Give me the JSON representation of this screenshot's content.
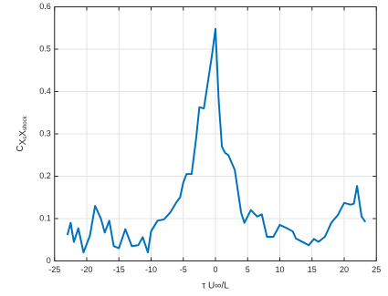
{
  "chart_data": {
    "type": "line",
    "xlabel": "τ U∞/L",
    "ylabel_parts": [
      "C",
      "X",
      "s",
      "X",
      "shock"
    ],
    "x": [
      -23,
      -22.5,
      -22,
      -21.3,
      -20.5,
      -19.5,
      -18.7,
      -17.8,
      -17.2,
      -16.5,
      -15.8,
      -15,
      -14,
      -13,
      -12,
      -11.3,
      -10.5,
      -10,
      -9,
      -8,
      -7,
      -6,
      -5.5,
      -5,
      -4.5,
      -3.7,
      -3,
      -2.5,
      -1.8,
      -1,
      -0.5,
      0,
      0.5,
      1,
      1.5,
      2,
      3,
      4,
      4.5,
      5.5,
      6.5,
      7.2,
      8,
      9,
      10,
      11,
      12,
      12.5,
      13.5,
      14.5,
      15.3,
      16,
      17,
      18,
      19,
      20,
      21,
      21.5,
      22,
      22.7,
      23.3
    ],
    "values": [
      0.061,
      0.09,
      0.045,
      0.077,
      0.02,
      0.06,
      0.13,
      0.1,
      0.067,
      0.095,
      0.035,
      0.03,
      0.075,
      0.035,
      0.037,
      0.056,
      0.02,
      0.07,
      0.095,
      0.098,
      0.115,
      0.14,
      0.15,
      0.185,
      0.205,
      0.205,
      0.29,
      0.363,
      0.36,
      0.44,
      0.49,
      0.548,
      0.38,
      0.27,
      0.255,
      0.25,
      0.215,
      0.113,
      0.09,
      0.12,
      0.105,
      0.11,
      0.057,
      0.057,
      0.085,
      0.078,
      0.07,
      0.053,
      0.045,
      0.037,
      0.052,
      0.045,
      0.057,
      0.09,
      0.108,
      0.137,
      0.133,
      0.135,
      0.177,
      0.105,
      0.092
    ],
    "color": "#0072bd",
    "xlim": [
      -25,
      25
    ],
    "xticks": [
      -25,
      -20,
      -15,
      -10,
      -5,
      0,
      5,
      10,
      15,
      20,
      25
    ],
    "ylim": [
      0,
      0.6
    ],
    "yticks": [
      0,
      0.1,
      0.2,
      0.3,
      0.4,
      0.5,
      0.6
    ],
    "grid": true
  }
}
